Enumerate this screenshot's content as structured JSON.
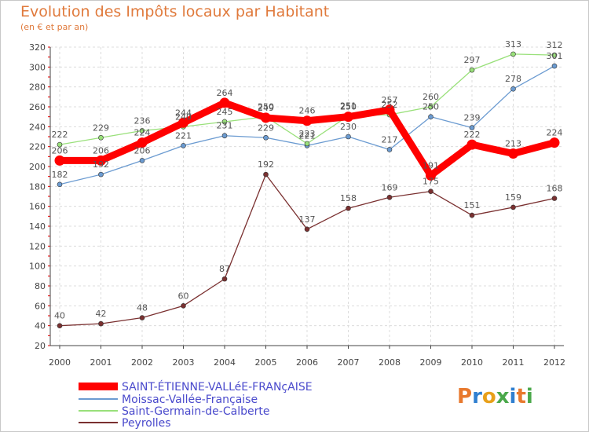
{
  "header": {
    "title": "Evolution des Impôts locaux par Habitant",
    "subtitle": "(en € et par an)"
  },
  "logo": {
    "text": "Proxiti",
    "colors": [
      "#e8792e",
      "#2f7fd0",
      "#e8a019",
      "#4aa84a",
      "#2f7fd0",
      "#e8792e",
      "#4aa84a"
    ]
  },
  "chart_data": {
    "type": "line",
    "x": [
      "2000",
      "2001",
      "2002",
      "2003",
      "2004",
      "2005",
      "2006",
      "2007",
      "2008",
      "2009",
      "2010",
      "2011",
      "2012"
    ],
    "ylim": [
      20,
      320
    ],
    "yticks": [
      20,
      40,
      60,
      80,
      100,
      120,
      140,
      160,
      180,
      200,
      220,
      240,
      260,
      280,
      300,
      320
    ],
    "grid": true,
    "legend": "bottom-left",
    "series": [
      {
        "name": "SAINT-ÉTIENNE-VALLéE-FRANçAISE",
        "color": "#ff0000",
        "width": 9,
        "values": [
          206,
          206,
          224,
          244,
          264,
          249,
          246,
          250,
          257,
          191,
          222,
          213,
          224
        ]
      },
      {
        "name": "Moissac-Vallée-Française",
        "color": "#6b9bd1",
        "width": 1.3,
        "values": [
          182,
          192,
          206,
          221,
          231,
          229,
          221,
          230,
          217,
          250,
          239,
          278,
          301
        ]
      },
      {
        "name": "Saint-Germain-de-Calberte",
        "color": "#99e07a",
        "width": 1.3,
        "values": [
          222,
          229,
          236,
          240,
          245,
          250,
          223,
          251,
          252,
          260,
          297,
          313,
          312
        ]
      },
      {
        "name": "Peyrolles",
        "color": "#7a3030",
        "width": 1.3,
        "values": [
          40,
          42,
          48,
          60,
          87,
          192,
          137,
          158,
          169,
          175,
          151,
          159,
          168
        ]
      }
    ]
  }
}
